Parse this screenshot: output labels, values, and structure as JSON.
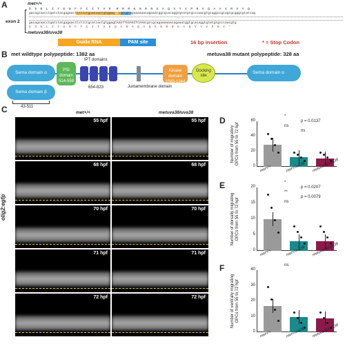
{
  "panelA": {
    "label": "A",
    "wt_title": "met+/+",
    "exon_label": "exon 2",
    "mut_title": "metuva38/uva38",
    "seq_aa_wt": "D  S  N  L  I  Y  E  N  F  F  C  I  T  V  E   R  R  R  K  N  R  N  G  A  Q  V  Y  V  P  N  V  Q  A  A  V  R  V  Y  Q",
    "seq_nt_wt": "gacagcaacctgatctatgagaacttcttctgcatcactgtggag  cgccgcagaaaaaacagaaatggtgcacaggtgtatgtgcccaacgtgcaggccgcagtgcgggtgtatcag",
    "seq_nt_mut": "gacagcaacctgatctatgagaacttcttctgcatcactgtggagCAGGTTCGAGCTCAAGcgccgcagaaaaaacagaaatggtgcacaggtgtatgtgcccaacgtg",
    "seq_aa_mut": "D  S  N  L  I  Y  E  N  F  F  C  I  T  V  E  Q  V  R  A  Q  A  Q  K  N  R  N  G  A  Q  V  Y  V  P  N  V  *",
    "legend_guide": "Guide RNA",
    "legend_pam": "PAM site",
    "legend_insertion": "16 bp insertion",
    "legend_stop": "* = Stop Codon"
  },
  "panelB": {
    "label": "B",
    "wt_title": "met wildtype polypeptide: 1382 aa",
    "mut_title": "metuva38 mutant polypeptide: 328 aa",
    "sema_a": "Sema domain α",
    "sema_b": "Sema domain β",
    "sema_b_range": "43-511",
    "psi": "PSI domain",
    "psi_range": "514-559",
    "ipt": "IPT domains",
    "ipt_range": "654-823",
    "juxta": "Juxtamembrane domain",
    "kinase": "Kinase domain",
    "kinase_range": "1083-1344",
    "docking": "Docking site",
    "mut_sema": "Sema domain α"
  },
  "panelC": {
    "label": "C",
    "col_wt": "met+/+",
    "col_mut": "metuva38/uva38",
    "side_label": "olig2:egfp",
    "timepoints": [
      "55 hpf",
      "68 hpf",
      "70 hpf",
      "71 hpf",
      "72 hpf"
    ]
  },
  "colors": {
    "wt": "#9a9a9a",
    "het": "#1a8a8a",
    "mut": "#8b1a4a",
    "guide": "#f5a623",
    "pam": "#2a8fd6",
    "insertion": "#c0392b"
  },
  "chart_data": [
    {
      "panel": "D",
      "type": "bar",
      "categories": [
        "met+/+",
        "met+/uva38",
        "metuva38/uva38"
      ],
      "values": [
        29,
        13,
        11
      ],
      "ylabel": "Number of migratory OPCs from 55 to 72 hpf",
      "ylim": [
        0,
        60
      ],
      "yticks": [
        0,
        20,
        40,
        60
      ],
      "annotations": [
        "*",
        "p = 0.0137",
        "ns",
        "ns"
      ]
    },
    {
      "panel": "E",
      "type": "bar",
      "categories": [
        "met+/+",
        "met+/uva38",
        "metuva38/uva38"
      ],
      "values": [
        10,
        3,
        3
      ],
      "ylabel": "Number of dorsally migrating OPCs from 55 to 72 hpf",
      "ylim": [
        0,
        20
      ],
      "yticks": [
        0,
        5,
        10,
        15,
        20
      ],
      "annotations": [
        "*",
        "p = 0.0207",
        "**",
        "p = 0.0079",
        "ns"
      ]
    },
    {
      "panel": "F",
      "type": "bar",
      "categories": [
        "met+/+",
        "met+/uva38",
        "metuva38/uva38"
      ],
      "values": [
        17,
        10,
        9
      ],
      "ylabel": "Number of ventrally migrating OPCs from 55 to 72 hpf",
      "ylim": [
        0,
        40
      ],
      "yticks": [
        0,
        10,
        20,
        30,
        40
      ],
      "annotations": [
        "ns"
      ]
    }
  ]
}
